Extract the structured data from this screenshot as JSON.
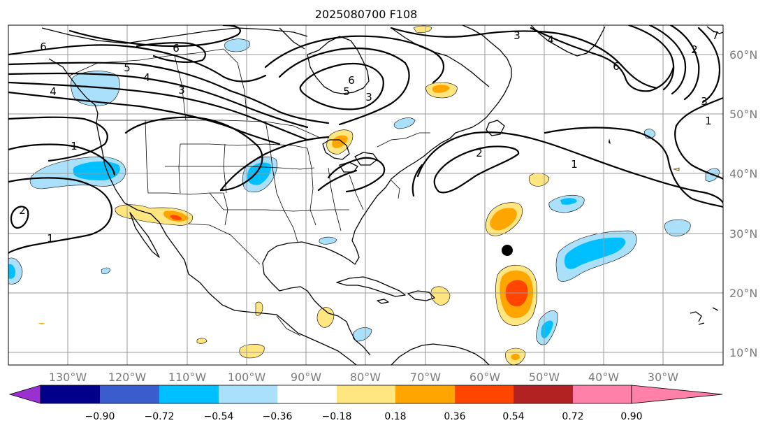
{
  "title": "2025080700 F108",
  "lat_labels": [
    "60°N",
    "50°N",
    "40°N",
    "30°N",
    "20°N",
    "10°N"
  ],
  "lon_labels": [
    "130°W",
    "120°W",
    "110°W",
    "100°W",
    "90°W",
    "80°W",
    "70°W",
    "60°W",
    "50°W",
    "40°W",
    "30°W"
  ],
  "contour_labels": [
    "6",
    "6",
    "6",
    "5",
    "5",
    "4",
    "4",
    "4",
    "3",
    "3",
    "3",
    "3",
    "2",
    "2",
    "2",
    "1",
    "1",
    "1",
    "1",
    "6",
    "7"
  ],
  "colorbar": {
    "ticks": [
      "−0.90",
      "−0.72",
      "−0.54",
      "−0.36",
      "−0.18",
      "0.18",
      "0.36",
      "0.54",
      "0.72",
      "0.90"
    ],
    "colors": [
      "#9a30d0",
      "#00008b",
      "#3b5ccc",
      "#00bfff",
      "#aae0fa",
      "#ffffff",
      "#ffe680",
      "#ffa500",
      "#ff4500",
      "#b22222",
      "#ff80a8"
    ]
  },
  "shading_colors": {
    "light_blue": "#aae0fa",
    "blue": "#00bfff",
    "yellow": "#ffe680",
    "orange": "#ffa500",
    "red_orange": "#ff4500"
  },
  "marker_color": "#000000"
}
